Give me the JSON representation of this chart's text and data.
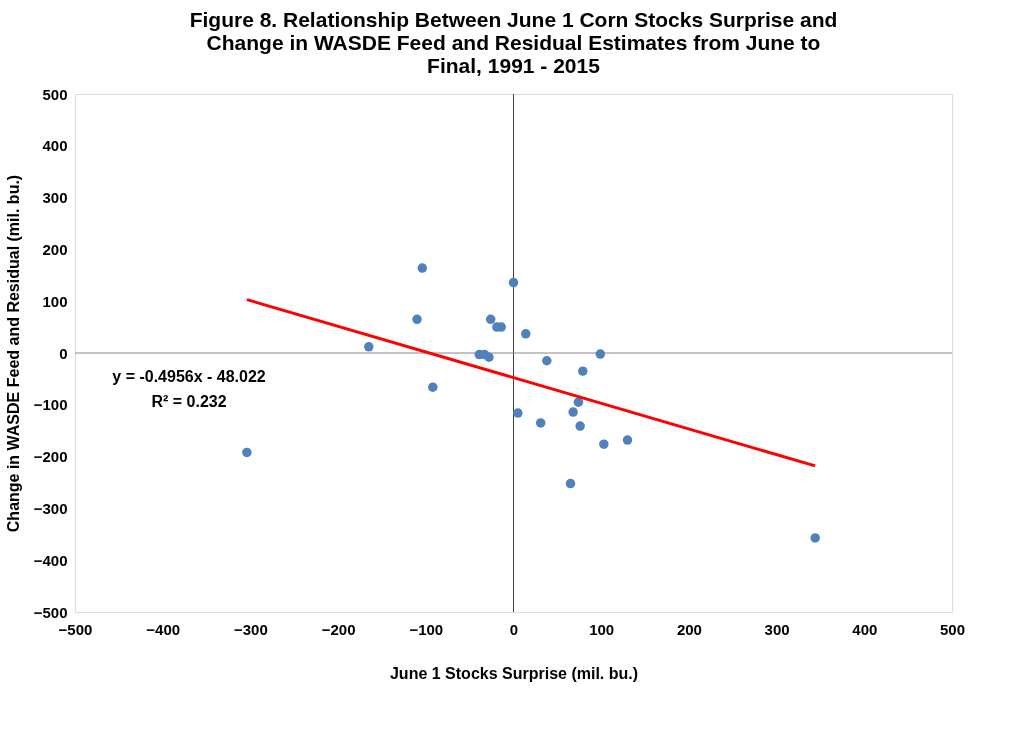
{
  "chart_data": {
    "type": "scatter",
    "title": [
      "Figure 8. Relationship Between June 1 Corn Stocks Surprise and",
      "Change in WASDE Feed and Residual Estimates from June to",
      "Final, 1991 - 2015"
    ],
    "xlabel": "June 1 Stocks Surprise (mil. bu.)",
    "ylabel": "Change in WASDE Feed and Residual (mil. bu.)",
    "xlim": [
      -500,
      500
    ],
    "xticks": [
      -500,
      -400,
      -300,
      -200,
      -100,
      0,
      100,
      200,
      300,
      400,
      500
    ],
    "ylim": [
      -500,
      500
    ],
    "yticks": [
      -500,
      -400,
      -300,
      -200,
      -100,
      0,
      100,
      200,
      300,
      400,
      500
    ],
    "grid": false,
    "series": [
      {
        "type": "scatter",
        "marker": "circle",
        "color": "#4f81bd",
        "x": [
          -304,
          -165,
          -110,
          -104,
          -92,
          -39,
          -33,
          -28,
          -26,
          -19,
          -14,
          0,
          14,
          38,
          79,
          99,
          5,
          31,
          74,
          68,
          76,
          103,
          130,
          65,
          344
        ],
        "values": [
          -192,
          12,
          65,
          164,
          -66,
          -3,
          -3,
          -8,
          65,
          50,
          50,
          136,
          37,
          -15,
          -35,
          -2,
          -116,
          -135,
          -95,
          -114,
          -141,
          -176,
          -168,
          -252,
          -357
        ]
      },
      {
        "type": "line",
        "marker": "none",
        "line_style": "solid",
        "color": "#ff0000",
        "x": [
          -304,
          344
        ],
        "values": [
          103,
          -218
        ]
      }
    ],
    "ref_lines": [
      {
        "axis": "x",
        "value": 0,
        "color": "#404040"
      },
      {
        "axis": "y",
        "value": 0,
        "color": "#868686"
      }
    ],
    "annotations": [
      "y = -0.4956x - 48.022",
      "R² = 0.232"
    ]
  }
}
